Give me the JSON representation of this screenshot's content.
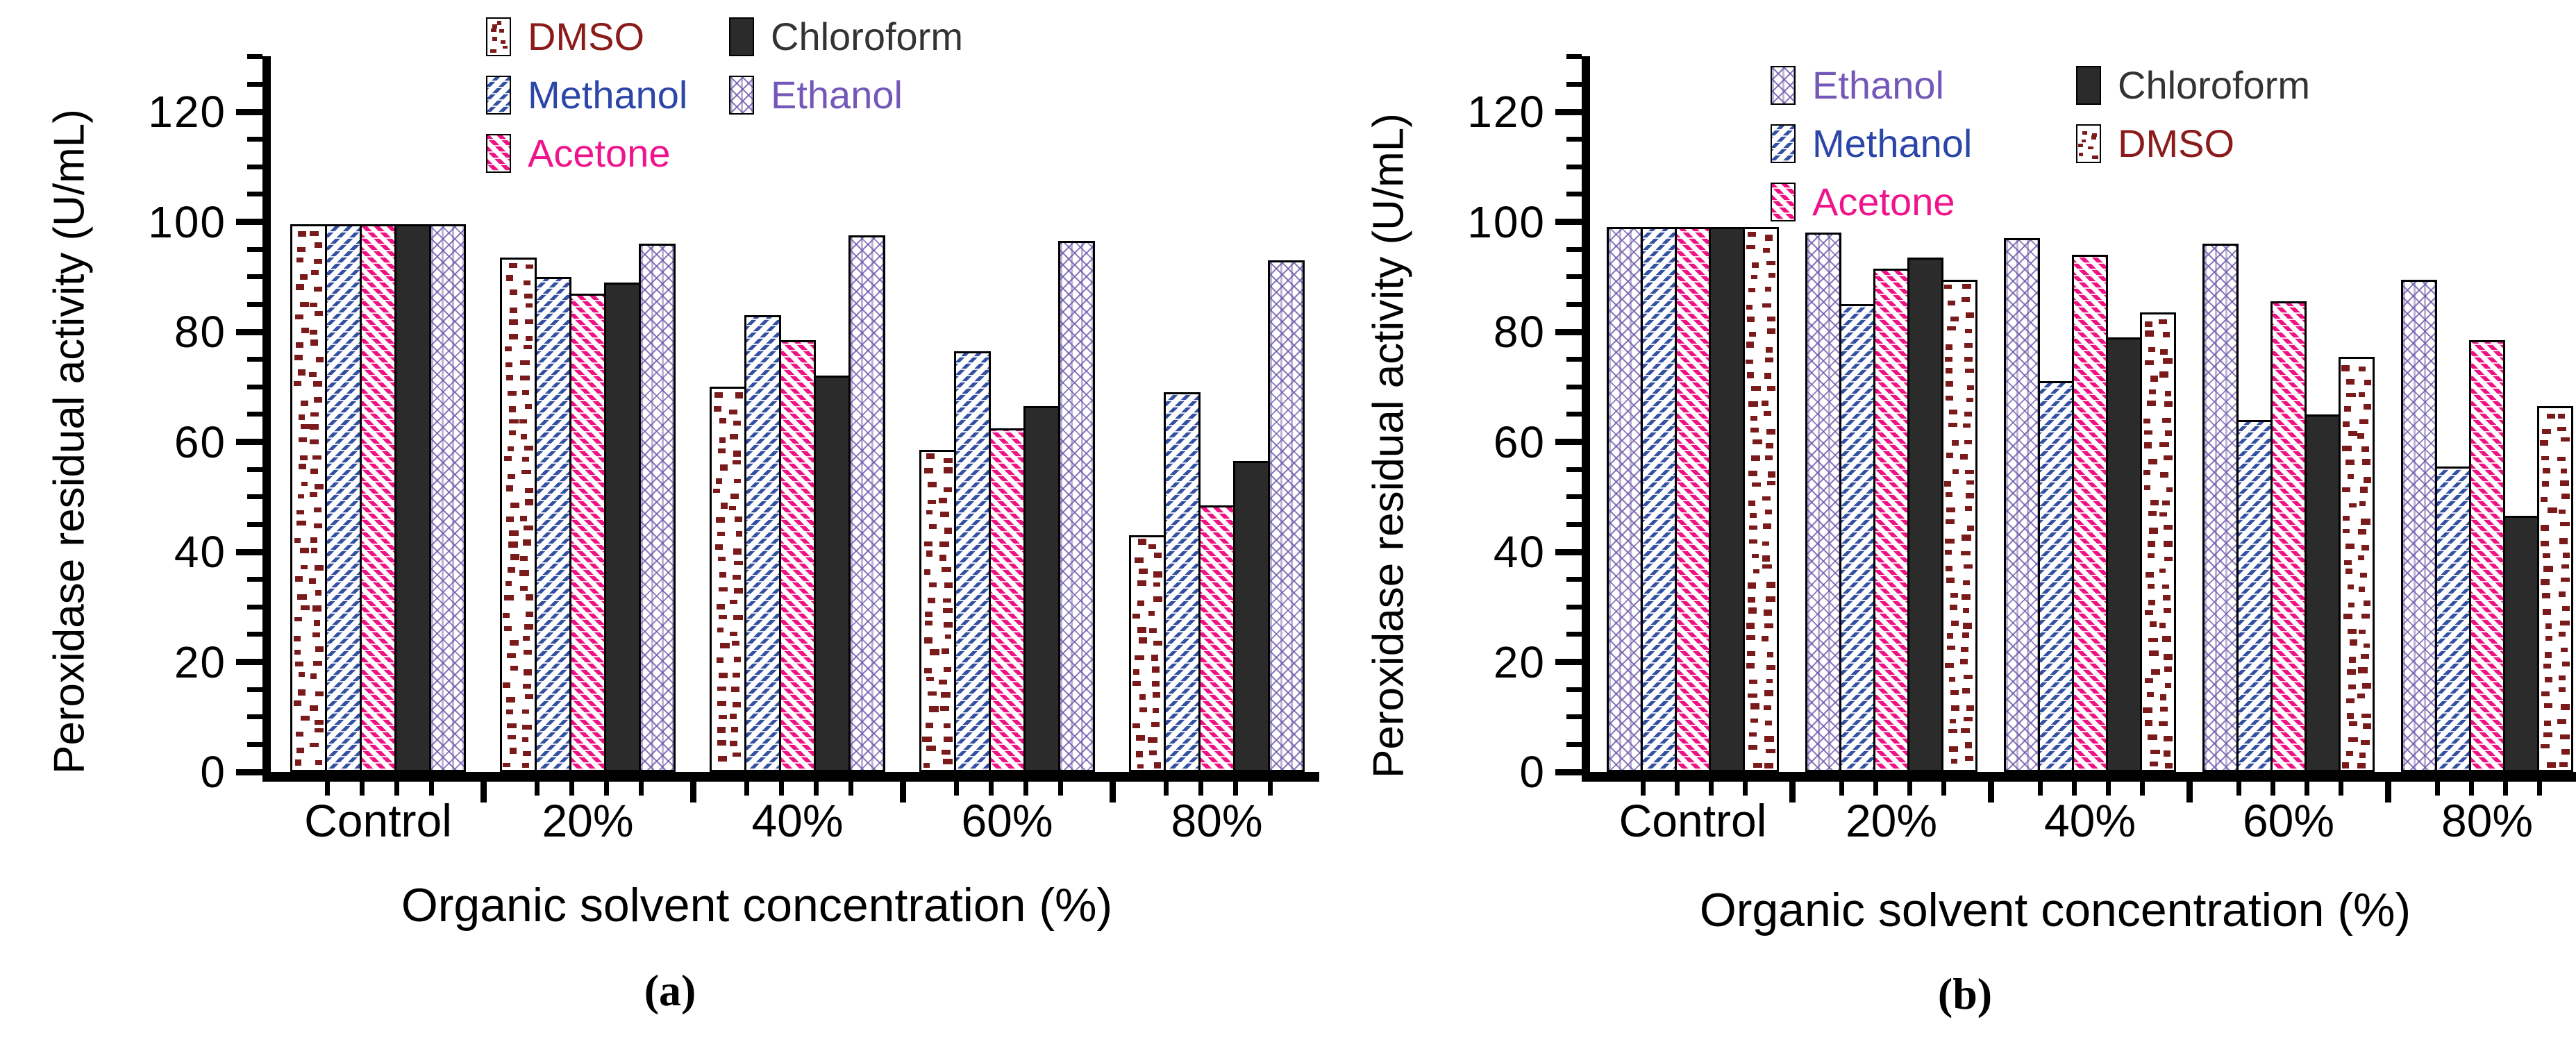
{
  "figure": {
    "background": "#ffffff",
    "panels": [
      "a",
      "b"
    ]
  },
  "colors": {
    "dmso": "#7A1A1A",
    "methanol": "#3350A2",
    "acetone": "#EE1283",
    "chloroform": "#2B2B2B",
    "ethanol": "#6C58A9",
    "axis": "#000000",
    "dmso_label": "#8B1A1A",
    "methanol_label": "#2B46A8",
    "acetone_label": "#F0148C",
    "chloroform_label": "#333333",
    "ethanol_label": "#7458B8"
  },
  "chart_data": [
    {
      "id": "a",
      "type": "bar",
      "caption": "(a)",
      "ylabel": "Peroxidase residual activity (U/mL)",
      "xlabel": "Organic solvent concentration (%)",
      "ylim": [
        0,
        120
      ],
      "yticks": [
        0,
        20,
        40,
        60,
        80,
        100,
        120
      ],
      "minor_tick_step": 5,
      "grid": false,
      "legend_position": "top-center",
      "categories": [
        "Control",
        "20%",
        "40%",
        "60%",
        "80%"
      ],
      "series": [
        {
          "name": "DMSO",
          "pattern": "dmso",
          "label_color": "#8B1A1A",
          "values": [
            99.5,
            93.5,
            70,
            58.5,
            43
          ]
        },
        {
          "name": "Methanol",
          "pattern": "methanol",
          "label_color": "#2B46A8",
          "values": [
            99.5,
            90,
            83,
            76.5,
            69
          ]
        },
        {
          "name": "Acetone",
          "pattern": "acetone",
          "label_color": "#F0148C",
          "values": [
            99.5,
            87,
            78.5,
            62.5,
            48.5
          ]
        },
        {
          "name": "Chloroform",
          "pattern": "chloroform",
          "label_color": "#333333",
          "values": [
            99.5,
            89,
            72,
            66.5,
            56.5
          ]
        },
        {
          "name": "Ethanol",
          "pattern": "ethanol",
          "label_color": "#7458B8",
          "values": [
            99.5,
            96,
            97.5,
            96.5,
            93
          ]
        }
      ],
      "legend_columns": [
        [
          "DMSO",
          "Methanol",
          "Acetone"
        ],
        [
          "Chloroform",
          "Ethanol"
        ]
      ]
    },
    {
      "id": "b",
      "type": "bar",
      "caption": "(b)",
      "ylabel": "Peroxidase residual activity (U/mL)",
      "xlabel": "Organic solvent concentration (%)",
      "ylim": [
        0,
        120
      ],
      "yticks": [
        0,
        20,
        40,
        60,
        80,
        100,
        120
      ],
      "minor_tick_step": 5,
      "grid": false,
      "legend_position": "top-center",
      "categories": [
        "Control",
        "20%",
        "40%",
        "60%",
        "80%"
      ],
      "series": [
        {
          "name": "Ethanol",
          "pattern": "ethanol",
          "label_color": "#7458B8",
          "values": [
            99,
            98,
            97,
            96,
            89.5
          ]
        },
        {
          "name": "Methanol",
          "pattern": "methanol",
          "label_color": "#2B46A8",
          "values": [
            99,
            85,
            71,
            64,
            55.5
          ]
        },
        {
          "name": "Acetone",
          "pattern": "acetone",
          "label_color": "#F0148C",
          "values": [
            99,
            91.5,
            94,
            85.5,
            78.5
          ]
        },
        {
          "name": "Chloroform",
          "pattern": "chloroform",
          "label_color": "#333333",
          "values": [
            99,
            93.5,
            79,
            65,
            46.5
          ]
        },
        {
          "name": "DMSO",
          "pattern": "dmso",
          "label_color": "#8B1A1A",
          "values": [
            99,
            89.5,
            83.5,
            75.5,
            66.5
          ]
        }
      ],
      "legend_columns": [
        [
          "Ethanol",
          "Methanol",
          "Acetone"
        ],
        [
          "Chloroform",
          "DMSO"
        ]
      ]
    }
  ]
}
